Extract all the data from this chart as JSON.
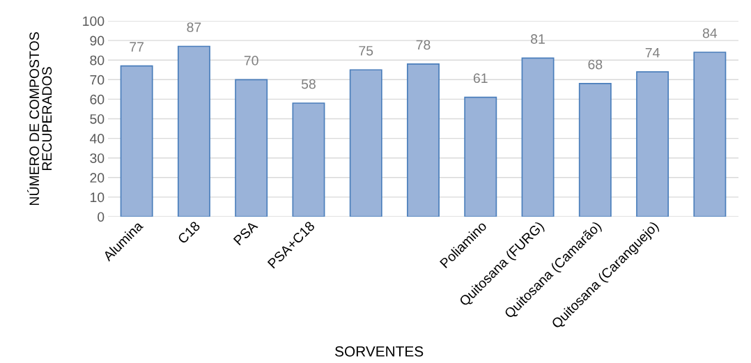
{
  "chart_data": {
    "type": "bar",
    "xlabel": "SORVENTES",
    "ylabel": "NÚMERO DE COMPOSTOS\nRECUPERADOS",
    "categories": [
      "Alumina",
      "C18",
      "PSA",
      "PSA+C18",
      null,
      null,
      "Poliamino",
      "Quitosana (FURG)",
      "Quitosana (Camarão)",
      "Quitosana (Caranguejo)",
      null
    ],
    "values": [
      77,
      87,
      70,
      58,
      75,
      78,
      61,
      81,
      68,
      74,
      84
    ],
    "color": "#9ab3d9",
    "ylim": [
      0,
      100
    ],
    "yticks": [
      0,
      10,
      20,
      30,
      40,
      50,
      60,
      70,
      80,
      90,
      100
    ],
    "grid": "y",
    "data_labels": true
  }
}
